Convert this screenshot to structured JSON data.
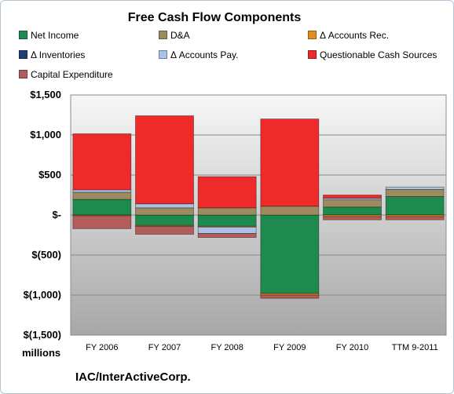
{
  "chart_data": {
    "type": "bar",
    "stacked": true,
    "title": "Free Cash Flow Components",
    "categories": [
      "FY 2006",
      "FY 2007",
      "FY 2008",
      "FY 2009",
      "FY 2010",
      "TTM 9-2011"
    ],
    "series": [
      {
        "name": "Net Income",
        "color": "#1f8a4f",
        "values": [
          195,
          -130,
          -140,
          -980,
          100,
          230
        ]
      },
      {
        "name": "D&A",
        "color": "#9b8b5e",
        "values": [
          90,
          90,
          90,
          110,
          90,
          90
        ]
      },
      {
        "name": "Δ Accounts Rec.",
        "color": "#e48b22",
        "values": [
          -10,
          -10,
          -10,
          -20,
          -20,
          -20
        ]
      },
      {
        "name": "Δ Inventories",
        "color": "#1f3f73",
        "values": [
          0,
          0,
          0,
          0,
          0,
          0
        ]
      },
      {
        "name": "Δ Accounts Pay.",
        "color": "#a9c2e6",
        "values": [
          30,
          50,
          -80,
          0,
          20,
          30
        ]
      },
      {
        "name": "Questionable Cash Sources",
        "color": "#ee2a2a",
        "values": [
          700,
          1100,
          390,
          1090,
          40,
          0
        ]
      },
      {
        "name": "Capital Expenditure",
        "color": "#b35c5c",
        "values": [
          -160,
          -100,
          -50,
          -40,
          -40,
          -40
        ]
      }
    ],
    "ylim": [
      -1500,
      1500
    ],
    "yticks": [
      1500,
      1000,
      500,
      0,
      -500,
      -1000,
      -1500
    ],
    "ytick_labels": [
      "$1,500",
      "$1,000",
      "$500",
      "$-",
      "$(500)",
      "$(1,000)",
      "$(1,500)"
    ],
    "legend_position": "top",
    "grid": true,
    "plot_background": "gradient-gray"
  },
  "units_label": "millions",
  "company_label": "IAC/InterActiveCorp."
}
